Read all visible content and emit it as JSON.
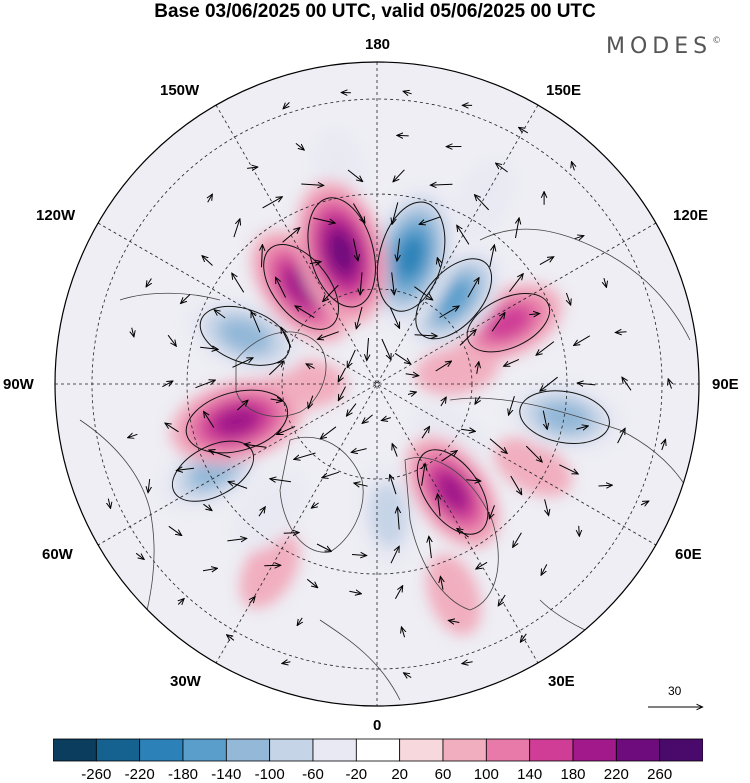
{
  "title": "Base 03/06/2025 00 UTC, valid 05/06/2025 00 UTC",
  "brand": "MODES",
  "brand_mark": "©",
  "longitude_labels": {
    "top": "180",
    "bottom": "0",
    "left": "90W",
    "right": "90E",
    "upper_left_1": "150W",
    "upper_left_2": "120W",
    "upper_right_1": "150E",
    "upper_right_2": "120E",
    "lower_left_1": "60W",
    "lower_left_2": "30W",
    "lower_right_1": "60E",
    "lower_right_2": "30E"
  },
  "reference_vector": {
    "value": "30",
    "icon": "arrow-right-icon"
  },
  "colorbar": {
    "ticks": [
      "-260",
      "-220",
      "-180",
      "-140",
      "-100",
      "-60",
      "-20",
      "20",
      "60",
      "100",
      "140",
      "180",
      "220",
      "260"
    ],
    "colors": [
      "#0b3d5e",
      "#15618f",
      "#2c82b8",
      "#5a9fcc",
      "#93b8d8",
      "#c6d4e7",
      "#e9e9f3",
      "#ffffff",
      "#f7d9dd",
      "#f1aebf",
      "#e77aa8",
      "#cf3d96",
      "#a1198a",
      "#6e0c7d",
      "#4a0a6b"
    ]
  },
  "anomalies": [
    {
      "lon": 165,
      "lat": 58,
      "value": -240
    },
    {
      "lon": -165,
      "lat": 57,
      "value": 240
    },
    {
      "lon": 138,
      "lat": 62,
      "value": -180
    },
    {
      "lon": -142,
      "lat": 60,
      "value": 190
    },
    {
      "lon": -110,
      "lat": 56,
      "value": -170
    },
    {
      "lon": -75,
      "lat": 55,
      "value": 210
    },
    {
      "lon": -62,
      "lat": 46,
      "value": -150
    },
    {
      "lon": 115,
      "lat": 55,
      "value": 150
    },
    {
      "lon": 80,
      "lat": 45,
      "value": -160
    },
    {
      "lon": 35,
      "lat": 58,
      "value": 180
    },
    {
      "lon": 62,
      "lat": 48,
      "value": 60
    },
    {
      "lon": 5,
      "lat": 58,
      "value": -120
    },
    {
      "lon": -40,
      "lat": 50,
      "value": -80
    },
    {
      "lon": 100,
      "lat": 70,
      "value": 60
    },
    {
      "lon": -30,
      "lat": 40,
      "value": 60
    },
    {
      "lon": 20,
      "lat": 38,
      "value": 60
    },
    {
      "lon": -90,
      "lat": 72,
      "value": 60
    },
    {
      "lon": 55,
      "lat": 68,
      "value": -60
    },
    {
      "lon": -170,
      "lat": 40,
      "value": -60
    },
    {
      "lon": 150,
      "lat": 40,
      "value": -60
    }
  ]
}
